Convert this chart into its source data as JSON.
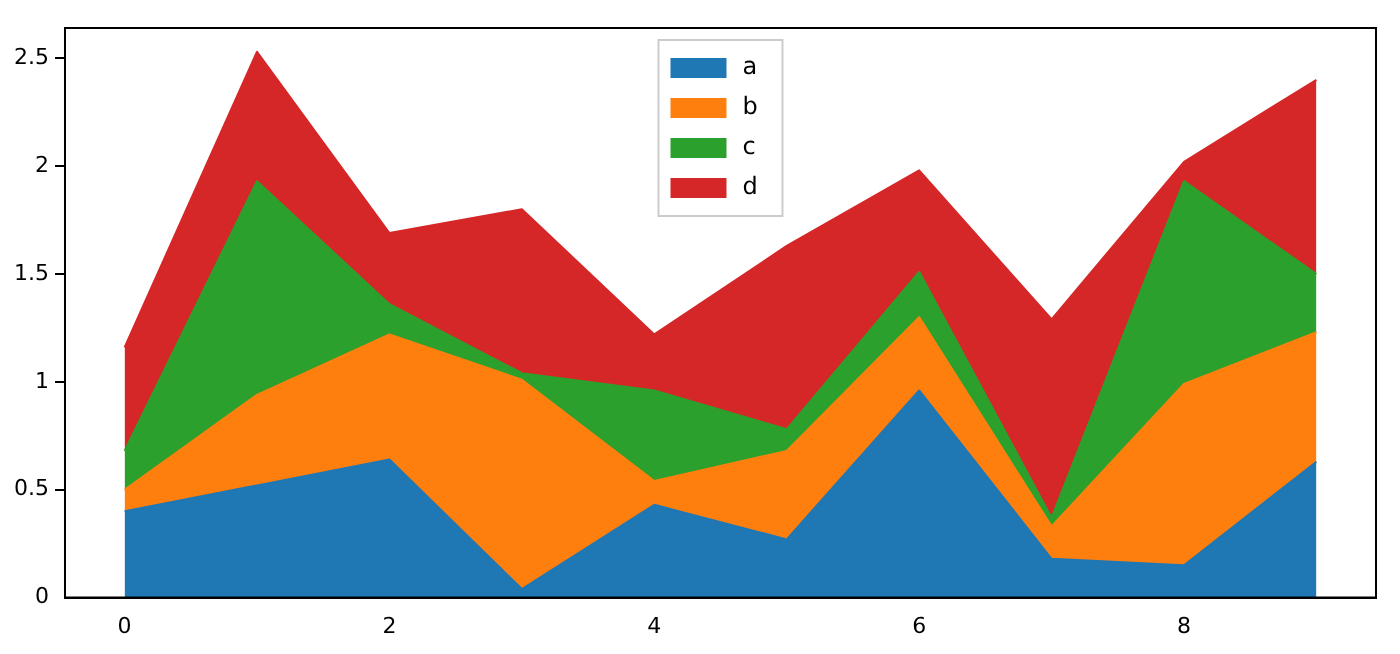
{
  "chart_data": {
    "type": "area",
    "stacked": true,
    "x": [
      0,
      1,
      2,
      3,
      4,
      5,
      6,
      7,
      8,
      9
    ],
    "xlim": [
      -0.45,
      9.45
    ],
    "xticks": [
      0,
      2,
      4,
      6,
      8
    ],
    "ylim": [
      0,
      2.64
    ],
    "yticks": [
      0,
      0.5,
      1,
      1.5,
      2,
      2.5
    ],
    "grid": false,
    "legend": "top",
    "marker": "none",
    "series": [
      {
        "name": "a",
        "color": "#1f77b4",
        "values": [
          0.4,
          0.52,
          0.64,
          0.04,
          0.43,
          0.27,
          0.96,
          0.18,
          0.15,
          0.63
        ]
      },
      {
        "name": "b",
        "color": "#ff7f0e",
        "values": [
          0.1,
          0.42,
          0.58,
          0.97,
          0.11,
          0.41,
          0.34,
          0.15,
          0.84,
          0.6
        ]
      },
      {
        "name": "c",
        "color": "#2ca02c",
        "values": [
          0.18,
          0.99,
          0.14,
          0.03,
          0.42,
          0.1,
          0.21,
          0.04,
          0.94,
          0.27
        ]
      },
      {
        "name": "d",
        "color": "#d62728",
        "values": [
          0.48,
          0.6,
          0.33,
          0.76,
          0.26,
          0.85,
          0.47,
          0.92,
          0.09,
          0.9
        ]
      }
    ]
  }
}
